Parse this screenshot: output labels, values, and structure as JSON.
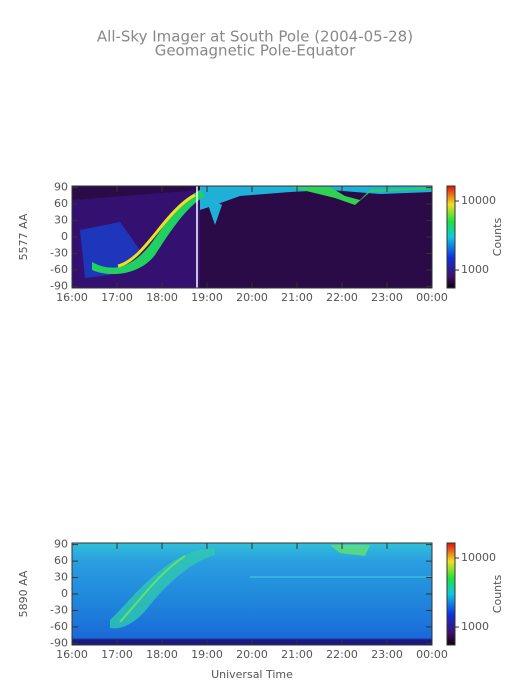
{
  "header": {
    "title": "All-Sky Imager at South Pole (2004-05-28)",
    "subtitle": "Geomagnetic Pole-Equator"
  },
  "chart_data": [
    {
      "type": "heatmap",
      "ylabel": "5577 AA",
      "xlim": [
        16,
        24
      ],
      "xticks": [
        {
          "value": 16,
          "label": "16:00"
        },
        {
          "value": 17,
          "label": "17:00"
        },
        {
          "value": 18,
          "label": "18:00"
        },
        {
          "value": 19,
          "label": "19:00"
        },
        {
          "value": 20,
          "label": "20:00"
        },
        {
          "value": 21,
          "label": "21:00"
        },
        {
          "value": 22,
          "label": "22:00"
        },
        {
          "value": 23,
          "label": "23:00"
        },
        {
          "value": 24,
          "label": "00:00"
        }
      ],
      "ylim": [
        -93,
        93
      ],
      "yticks": [
        -90,
        -60,
        -30,
        0,
        30,
        60,
        90
      ],
      "colorbar": {
        "label": "Counts",
        "log": true,
        "lim": [
          550,
          16500
        ],
        "ticks": [
          1000,
          10000
        ]
      }
    },
    {
      "type": "heatmap",
      "ylabel": "5890 AA",
      "xlabel": "Universal Time",
      "xlim": [
        16,
        24
      ],
      "xticks": [
        {
          "value": 16,
          "label": "16:00"
        },
        {
          "value": 17,
          "label": "17:00"
        },
        {
          "value": 18,
          "label": "18:00"
        },
        {
          "value": 19,
          "label": "19:00"
        },
        {
          "value": 20,
          "label": "20:00"
        },
        {
          "value": 21,
          "label": "21:00"
        },
        {
          "value": 22,
          "label": "22:00"
        },
        {
          "value": 23,
          "label": "23:00"
        },
        {
          "value": 24,
          "label": "00:00"
        }
      ],
      "ylim": [
        -93,
        93
      ],
      "yticks": [
        -90,
        -60,
        -30,
        0,
        30,
        60,
        90
      ],
      "colorbar": {
        "label": "Counts",
        "log": true,
        "lim": [
          550,
          16500
        ],
        "ticks": [
          1000,
          10000
        ]
      }
    }
  ]
}
